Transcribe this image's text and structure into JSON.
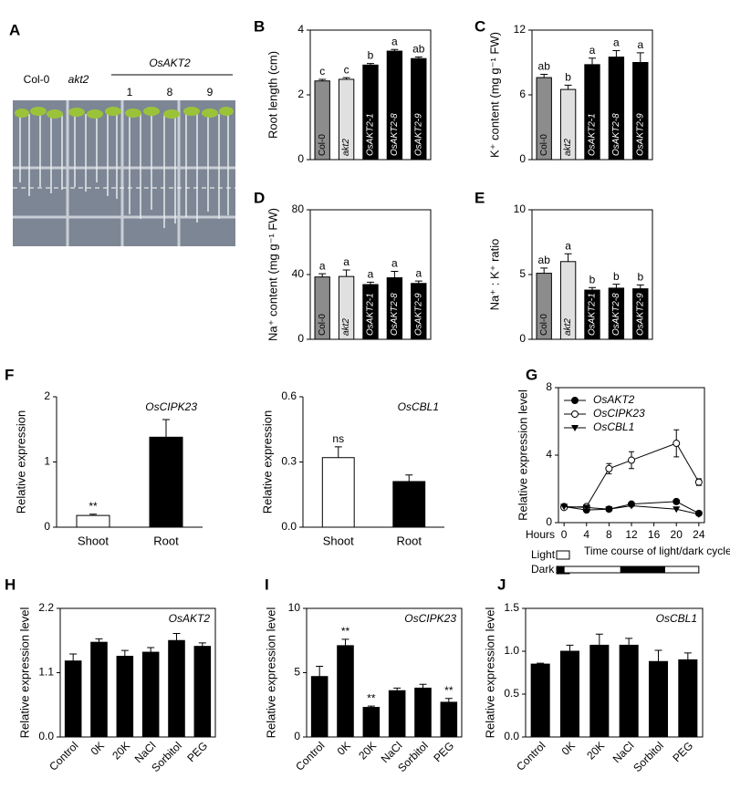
{
  "panel_a": {
    "panel": "A",
    "labels": [
      "Col-0",
      "akt2"
    ],
    "group": "OsAKT2",
    "lines": [
      "1",
      "8",
      "9"
    ]
  },
  "chart_data": [
    {
      "type": "bar",
      "panel": "B",
      "ylabel": "Root length (cm)",
      "categories": [
        "Col-0",
        "akt2",
        "OsAKT2-1",
        "OsAKT2-8",
        "OsAKT2-9"
      ],
      "values": [
        2.43,
        2.48,
        2.92,
        3.35,
        3.12
      ],
      "errors": [
        0.05,
        0.05,
        0.05,
        0.05,
        0.05
      ],
      "bar_labels": [
        "c",
        "c",
        "b",
        "a",
        "ab"
      ],
      "colors": [
        "#8c8c8c",
        "#e0e0e0",
        "#000000",
        "#000000",
        "#000000"
      ],
      "ylim": [
        0,
        4
      ],
      "yticks": [
        0,
        2,
        4
      ]
    },
    {
      "type": "bar",
      "panel": "C",
      "ylabel": "K⁺ content (mg g⁻¹ FW)",
      "categories": [
        "Col-0",
        "akt2",
        "OsAKT2-1",
        "OsAKT2-8",
        "OsAKT2-9"
      ],
      "values": [
        7.6,
        6.5,
        8.8,
        9.5,
        9.0
      ],
      "errors": [
        0.3,
        0.4,
        0.6,
        0.6,
        0.9
      ],
      "bar_labels": [
        "ab",
        "b",
        "a",
        "a",
        "a"
      ],
      "colors": [
        "#8c8c8c",
        "#e0e0e0",
        "#000000",
        "#000000",
        "#000000"
      ],
      "ylim": [
        0,
        12
      ],
      "yticks": [
        0,
        6,
        12
      ]
    },
    {
      "type": "bar",
      "panel": "D",
      "ylabel": "Na⁺ content (mg g⁻¹ FW)",
      "categories": [
        "Col-0",
        "akt2",
        "OsAKT2-1",
        "OsAKT2-8",
        "OsAKT2-9"
      ],
      "values": [
        38.5,
        38.8,
        33.8,
        38,
        34.5
      ],
      "errors": [
        2,
        4,
        1.5,
        4,
        1.5
      ],
      "bar_labels": [
        "a",
        "a",
        "a",
        "a",
        "a"
      ],
      "colors": [
        "#8c8c8c",
        "#e0e0e0",
        "#000000",
        "#000000",
        "#000000"
      ],
      "ylim": [
        0,
        80
      ],
      "yticks": [
        0,
        40,
        80
      ]
    },
    {
      "type": "bar",
      "panel": "E",
      "ylabel": "Na⁺ : K⁺ ratio",
      "categories": [
        "Col-0",
        "akt2",
        "OsAKT2-1",
        "OsAKT2-8",
        "OsAKT2-9"
      ],
      "values": [
        5.1,
        6.0,
        3.8,
        3.95,
        3.9
      ],
      "errors": [
        0.4,
        0.6,
        0.2,
        0.3,
        0.3
      ],
      "bar_labels": [
        "ab",
        "a",
        "b",
        "b",
        "b"
      ],
      "colors": [
        "#8c8c8c",
        "#e0e0e0",
        "#000000",
        "#000000",
        "#000000"
      ],
      "ylim": [
        0,
        10
      ],
      "yticks": [
        0,
        5,
        10
      ]
    },
    {
      "type": "bar",
      "panel": "F",
      "title": "OsCIPK23",
      "ylabel": "Relative expression",
      "categories": [
        "Shoot",
        "Root"
      ],
      "values": [
        0.18,
        1.38
      ],
      "errors": [
        0.02,
        0.27
      ],
      "bar_labels": [
        "**",
        null
      ],
      "colors": [
        "#ffffff",
        "#000000"
      ],
      "ylim": [
        0,
        2
      ],
      "yticks": [
        0,
        1,
        2
      ]
    },
    {
      "type": "bar",
      "title": "OsCBL1",
      "ylabel": "Relative expression",
      "categories": [
        "Shoot",
        "Root"
      ],
      "values": [
        0.32,
        0.21
      ],
      "errors": [
        0.05,
        0.03
      ],
      "bar_labels": [
        "ns",
        null
      ],
      "colors": [
        "#ffffff",
        "#000000"
      ],
      "ylim": [
        0,
        0.6
      ],
      "yticks": [
        {
          "value": 0,
          "label": "0.0"
        },
        0.3,
        0.6
      ]
    },
    {
      "type": "line",
      "panel": "G",
      "ylabel": "Relative expression level",
      "xlabel": "Time course of light/dark cycle",
      "xname": "Hours",
      "x": [
        0,
        4,
        8,
        12,
        20,
        24
      ],
      "xlim": [
        -1,
        25
      ],
      "xticks": [
        0,
        4,
        8,
        12,
        16,
        20,
        24
      ],
      "ylim": [
        0,
        8
      ],
      "yticks": [
        0,
        4,
        8
      ],
      "series": [
        {
          "name": "OsAKT2",
          "color": "#000000",
          "marker": "filled-circle",
          "values": [
            0.95,
            0.75,
            0.8,
            1.1,
            1.25,
            0.55
          ],
          "errors": [
            null,
            null,
            null,
            null,
            null,
            null
          ]
        },
        {
          "name": "OsCIPK23",
          "color": "#000000",
          "marker": "open-circle",
          "values": [
            0.9,
            0.95,
            3.2,
            3.7,
            4.7,
            2.4
          ],
          "errors": [
            null,
            null,
            0.3,
            0.5,
            0.8,
            0.2
          ]
        },
        {
          "name": "OsCBL1",
          "color": "#000000",
          "marker": "triangle-down",
          "values": [
            0.95,
            0.9,
            0.8,
            1.0,
            0.8,
            0.5
          ],
          "errors": [
            null,
            null,
            null,
            null,
            null,
            null
          ]
        }
      ],
      "light_label": "Light",
      "dark_label": "Dark",
      "dark_period": [
        10,
        18
      ]
    },
    {
      "type": "bar",
      "panel": "H",
      "title": "OsAKT2",
      "ylabel": "Relative expression level",
      "categories": [
        "Control",
        "0K",
        "20K",
        "NaCl",
        "Sorbitol",
        "PEG"
      ],
      "values": [
        1.3,
        1.62,
        1.38,
        1.45,
        1.65,
        1.55
      ],
      "errors": [
        0.12,
        0.06,
        0.1,
        0.08,
        0.12,
        0.06
      ],
      "bar_labels": [
        null,
        null,
        null,
        null,
        null,
        null
      ],
      "colors": [
        "#000000",
        "#000000",
        "#000000",
        "#000000",
        "#000000",
        "#000000"
      ],
      "ylim": [
        0,
        2.2
      ],
      "yticks": [
        {
          "value": 0,
          "label": "0.0"
        },
        1.1,
        2.2
      ]
    },
    {
      "type": "bar",
      "panel": "I",
      "title": "OsCIPK23",
      "ylabel": "Relative expression level",
      "categories": [
        "Control",
        "0K",
        "20K",
        "NaCl",
        "Sorbitol",
        "PEG"
      ],
      "values": [
        4.7,
        7.1,
        2.3,
        3.6,
        3.8,
        2.7
      ],
      "errors": [
        0.8,
        0.5,
        0.1,
        0.2,
        0.3,
        0.3
      ],
      "bar_labels": [
        null,
        "**",
        "**",
        null,
        null,
        "**"
      ],
      "colors": [
        "#000000",
        "#000000",
        "#000000",
        "#000000",
        "#000000",
        "#000000"
      ],
      "ylim": [
        0,
        10
      ],
      "yticks": [
        0,
        5,
        10
      ]
    },
    {
      "type": "bar",
      "panel": "J",
      "title": "OsCBL1",
      "ylabel": "Relative expression level",
      "categories": [
        "Control",
        "0K",
        "20K",
        "NaCl",
        "Sorbitol",
        "PEG"
      ],
      "values": [
        0.85,
        1.0,
        1.07,
        1.07,
        0.88,
        0.9
      ],
      "errors": [
        0.01,
        0.07,
        0.13,
        0.08,
        0.13,
        0.08
      ],
      "bar_labels": [
        null,
        null,
        null,
        null,
        null,
        null
      ],
      "colors": [
        "#000000",
        "#000000",
        "#000000",
        "#000000",
        "#000000",
        "#000000"
      ],
      "ylim": [
        0,
        1.5
      ],
      "yticks": [
        {
          "value": 0,
          "label": "0.0"
        },
        0.5,
        {
          "value": 1,
          "label": "1.0"
        },
        1.5
      ]
    }
  ]
}
